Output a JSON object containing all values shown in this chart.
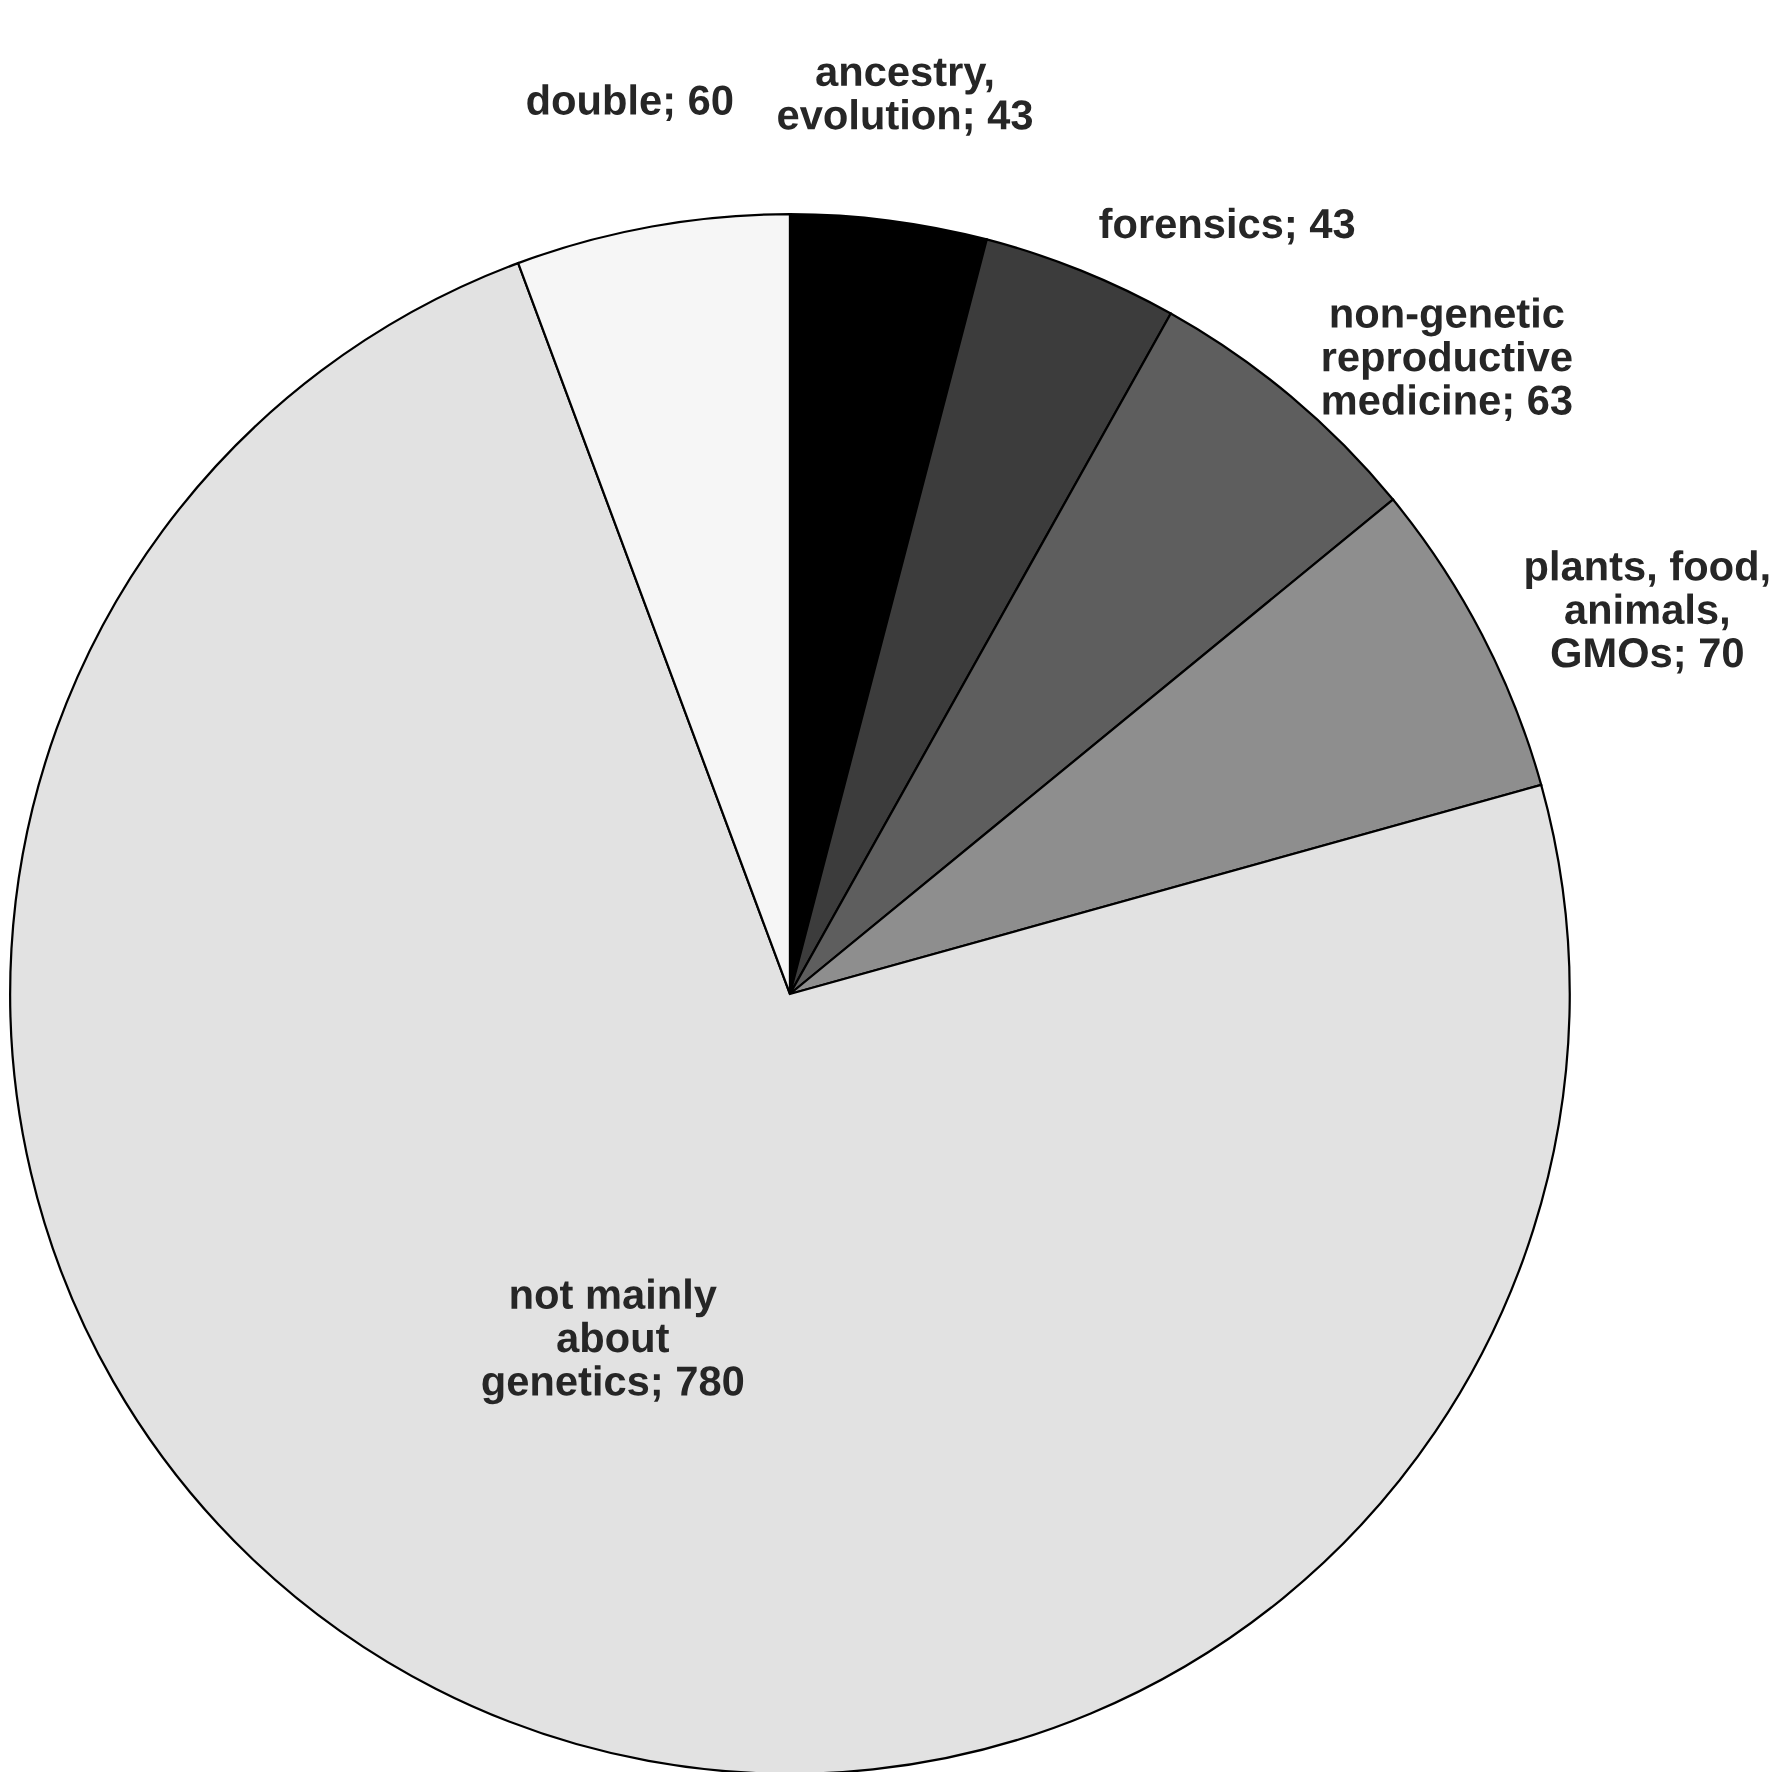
{
  "chart_data": {
    "type": "pie",
    "categories": [
      "ancestry,\nevolution; 43",
      "forensics; 43",
      "non-genetic\nreproductive\nmedicine; 63",
      "plants, food,\nanimals,\nGMOs; 70",
      "not mainly\nabout\ngenetics; 780",
      "double; 60"
    ],
    "values": [
      43,
      43,
      63,
      70,
      780,
      60
    ],
    "colors": [
      "#000000",
      "#3c3c3c",
      "#5e5e5e",
      "#8e8e8e",
      "#e2e2e2",
      "#f6f6f6"
    ]
  }
}
